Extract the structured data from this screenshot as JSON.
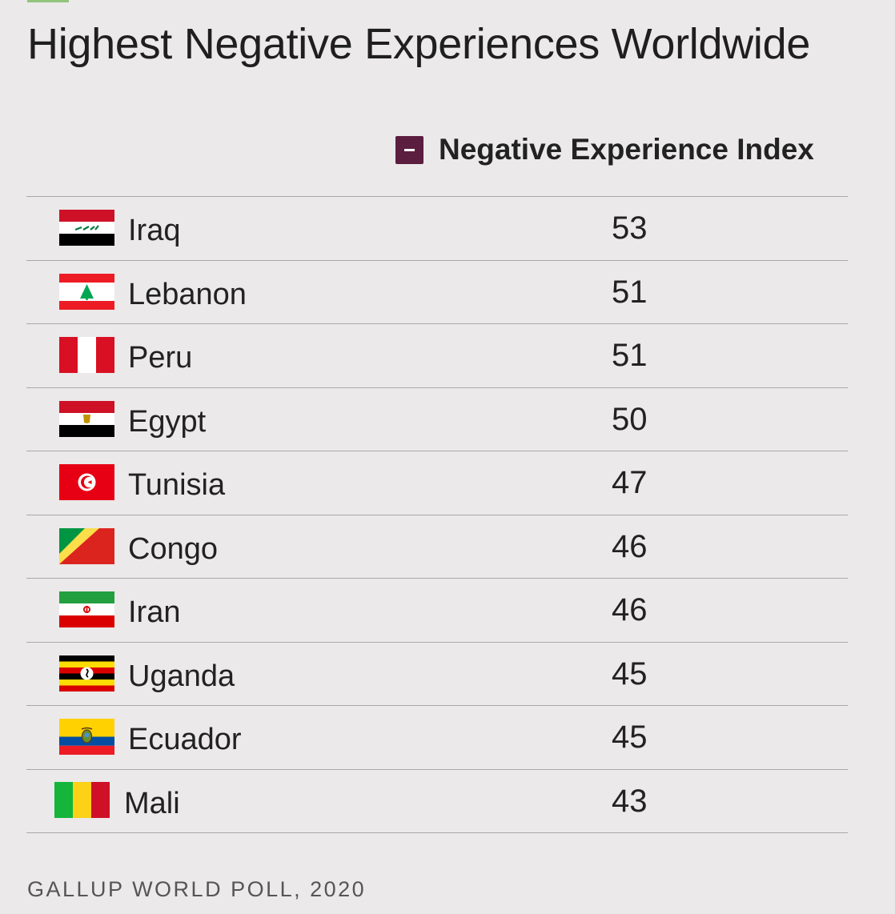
{
  "title": "Highest Negative Experiences Worldwide",
  "legend": {
    "label": "Negative Experience Index",
    "color": "#5b1e3f",
    "toggle_icon": "minus-icon"
  },
  "source": "GALLUP WORLD POLL, 2020",
  "chart_data": {
    "type": "table",
    "title": "Highest Negative Experiences Worldwide",
    "columns": [
      "",
      "Negative Experience Index"
    ],
    "rows": [
      {
        "country": "Iraq",
        "value": 53,
        "flag": "iraq-flag-icon"
      },
      {
        "country": "Lebanon",
        "value": 51,
        "flag": "lebanon-flag-icon"
      },
      {
        "country": "Peru",
        "value": 51,
        "flag": "peru-flag-icon"
      },
      {
        "country": "Egypt",
        "value": 50,
        "flag": "egypt-flag-icon"
      },
      {
        "country": "Tunisia",
        "value": 47,
        "flag": "tunisia-flag-icon"
      },
      {
        "country": "Congo",
        "value": 46,
        "flag": "congo-flag-icon"
      },
      {
        "country": "Iran",
        "value": 46,
        "flag": "iran-flag-icon"
      },
      {
        "country": "Uganda",
        "value": 45,
        "flag": "uganda-flag-icon"
      },
      {
        "country": "Ecuador",
        "value": 45,
        "flag": "ecuador-flag-icon"
      },
      {
        "country": "Mali",
        "value": 43,
        "flag": "mali-flag-icon"
      }
    ],
    "source": "GALLUP WORLD POLL, 2020"
  }
}
